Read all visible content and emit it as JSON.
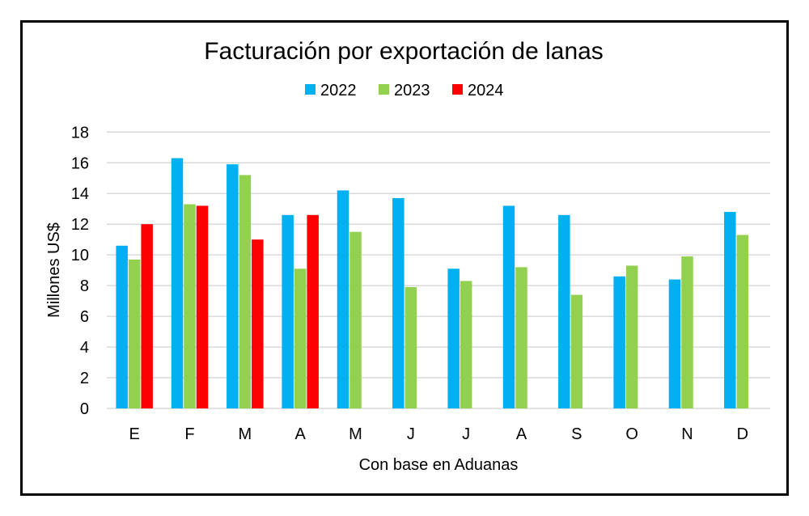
{
  "chart_data": {
    "type": "bar",
    "title": "Facturación por exportación de lanas",
    "xlabel": "Con base en Aduanas",
    "ylabel": "Millones US$",
    "ylim": [
      0,
      18
    ],
    "yticks": [
      0,
      2,
      4,
      6,
      8,
      10,
      12,
      14,
      16,
      18
    ],
    "grid": true,
    "legend": "top",
    "categories": [
      "E",
      "F",
      "M",
      "A",
      "M",
      "J",
      "J",
      "A",
      "S",
      "O",
      "N",
      "D"
    ],
    "series": [
      {
        "name": "2022",
        "color": "#00B0F0",
        "values": [
          10.6,
          16.3,
          15.9,
          12.6,
          14.2,
          13.7,
          9.1,
          13.2,
          12.6,
          8.6,
          8.4,
          12.8
        ]
      },
      {
        "name": "2023",
        "color": "#92D050",
        "values": [
          9.7,
          13.3,
          15.2,
          9.1,
          11.5,
          7.9,
          8.3,
          9.2,
          7.4,
          9.3,
          9.9,
          11.3
        ]
      },
      {
        "name": "2024",
        "color": "#FF0000",
        "values": [
          12.0,
          13.2,
          11.0,
          12.6,
          null,
          null,
          null,
          null,
          null,
          null,
          null,
          null
        ]
      }
    ]
  }
}
